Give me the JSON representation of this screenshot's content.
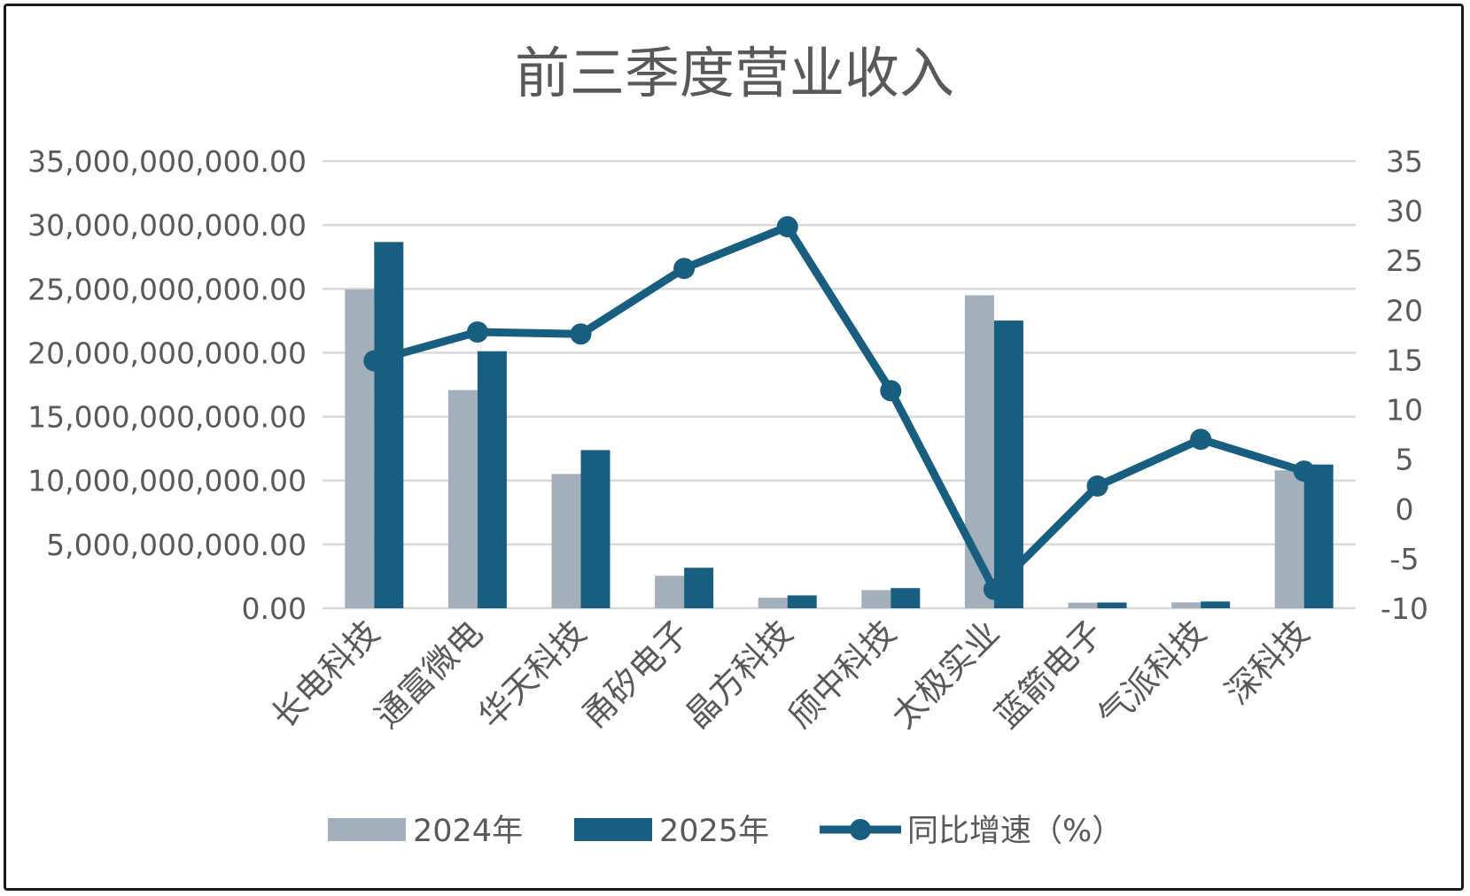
{
  "chart_data": {
    "type": "bar",
    "title": "前三季度营业收入",
    "categories": [
      "长电科技",
      "通富微电",
      "华天科技",
      "甬矽电子",
      "晶方科技",
      "颀中科技",
      "太极实业",
      "蓝箭电子",
      "气派科技",
      "深科技"
    ],
    "series": [
      {
        "name": "2024年",
        "type": "bar",
        "axis": "left",
        "color": "#A3AFBB",
        "values": [
          24960000000,
          17080000000,
          10510000000,
          2540000000,
          820000000,
          1420000000,
          24500000000,
          440000000,
          460000000,
          10800000000
        ]
      },
      {
        "name": "2025年",
        "type": "bar",
        "axis": "left",
        "color": "#175E81",
        "values": [
          28670000000,
          20120000000,
          12380000000,
          3170000000,
          1010000000,
          1580000000,
          22520000000,
          450000000,
          530000000,
          11250000000
        ]
      },
      {
        "name": "同比增速（%）",
        "type": "line",
        "axis": "right",
        "color": "#175E81",
        "values": [
          14.9,
          17.8,
          17.6,
          24.2,
          28.4,
          11.9,
          -8.1,
          2.3,
          7.0,
          3.8
        ]
      }
    ],
    "y_left": {
      "min": 0,
      "max": 35000000000,
      "step": 5000000000,
      "tick_labels": [
        "0.00",
        "5,000,000,000.00",
        "10,000,000,000.00",
        "15,000,000,000.00",
        "20,000,000,000.00",
        "25,000,000,000.00",
        "30,000,000,000.00",
        "35,000,000,000.00"
      ]
    },
    "y_right": {
      "min": -10,
      "max": 35,
      "step": 5,
      "tick_labels": [
        "-10",
        "-5",
        "0",
        "5",
        "10",
        "15",
        "20",
        "25",
        "30",
        "35"
      ]
    },
    "grid": true,
    "legend": {
      "placement": "bottom",
      "entries": [
        "2024年",
        "2025年",
        "同比增速（%）"
      ]
    }
  }
}
